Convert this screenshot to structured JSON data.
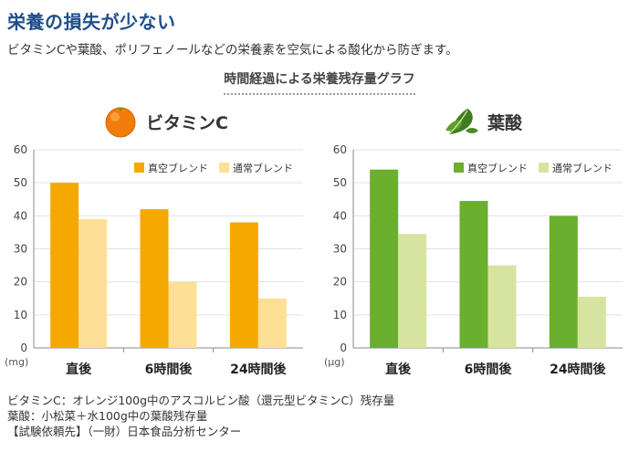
{
  "heading": "栄養の損失が少ない",
  "intro": "ビタミンCや葉酸、ポリフェノールなどの栄養素を空気による酸化から防ぎます。",
  "chart_title": "時間経過による栄養残存量グラフ",
  "colors": {
    "vitc_vacuum": "#f5a800",
    "vitc_normal": "#fde095",
    "folic_vacuum": "#6aaf2e",
    "folic_normal": "#d6e4a0"
  },
  "icons": {
    "vitc": "orange-icon",
    "folic": "spinach-leaf-icon"
  },
  "chart_data": [
    {
      "type": "bar",
      "title": "ビタミンC",
      "xlabel": "",
      "ylabel": "",
      "unit": "(mg)",
      "ylim": [
        0,
        60
      ],
      "yticks": [
        0,
        10,
        20,
        30,
        40,
        50,
        60
      ],
      "grid": true,
      "legend": "top-right",
      "categories": [
        "直後",
        "6時間後",
        "24時間後"
      ],
      "series": [
        {
          "name": "真空ブレンド",
          "values": [
            50,
            42,
            38
          ]
        },
        {
          "name": "通常ブレンド",
          "values": [
            39,
            20,
            15
          ]
        }
      ]
    },
    {
      "type": "bar",
      "title": "葉酸",
      "xlabel": "",
      "ylabel": "",
      "unit": "(μg)",
      "ylim": [
        0,
        60
      ],
      "yticks": [
        0,
        10,
        20,
        30,
        40,
        50,
        60
      ],
      "grid": true,
      "legend": "top-right",
      "categories": [
        "直後",
        "6時間後",
        "24時間後"
      ],
      "series": [
        {
          "name": "真空ブレンド",
          "values": [
            54,
            44.5,
            40
          ]
        },
        {
          "name": "通常ブレンド",
          "values": [
            34.5,
            25,
            15.5
          ]
        }
      ]
    }
  ],
  "notes": [
    "ビタミンC：オレンジ100g中のアスコルビン酸（還元型ビタミンC）残存量",
    "葉酸：小松菜＋水100g中の葉酸残存量",
    "【試験依頼先】（一財）日本食品分析センター"
  ]
}
